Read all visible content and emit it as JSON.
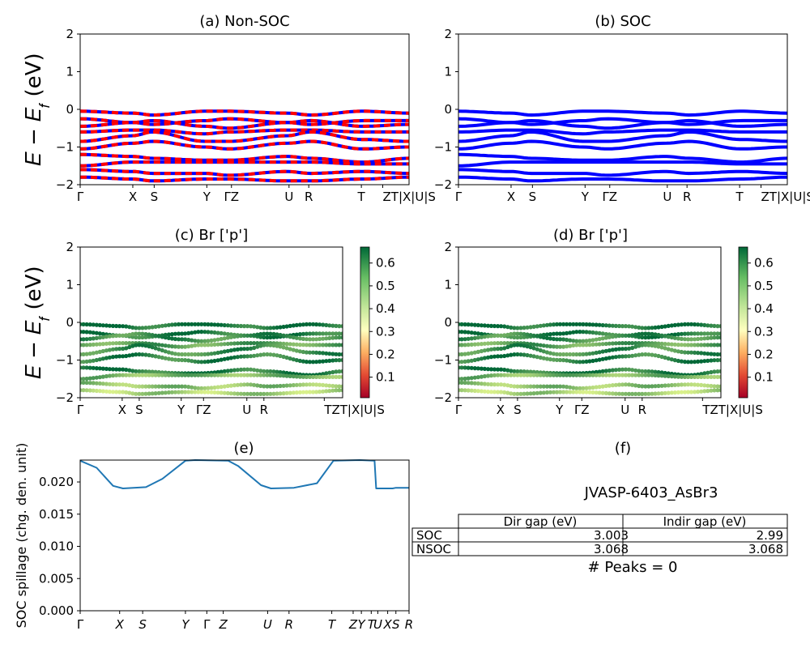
{
  "chart_data": [
    {
      "id": "a",
      "type": "line",
      "title": "(a) Non-SOC",
      "ylabel": "E − E_f (eV)",
      "ylim": [
        -2,
        2
      ],
      "yticks": [
        "2",
        "1",
        "0",
        "−1",
        "−2"
      ],
      "xticks": [
        "Γ",
        "X",
        "S",
        "Y",
        "ΓZ",
        "U",
        "R",
        "T",
        "ZT|X|U|S"
      ],
      "style": "red-blue-dashed",
      "bands_at_kpoints": {
        "k": [
          0,
          0.16,
          0.22,
          0.38,
          0.45,
          0.63,
          0.7,
          0.86,
          1.0
        ],
        "bands": [
          [
            -0.05,
            -0.1,
            -0.15,
            -0.05,
            -0.05,
            -0.1,
            -0.15,
            -0.05,
            -0.1
          ],
          [
            -0.25,
            -0.35,
            -0.4,
            -0.3,
            -0.25,
            -0.35,
            -0.4,
            -0.3,
            -0.3
          ],
          [
            -0.45,
            -0.35,
            -0.3,
            -0.45,
            -0.5,
            -0.35,
            -0.3,
            -0.45,
            -0.4
          ],
          [
            -0.6,
            -0.55,
            -0.55,
            -0.65,
            -0.6,
            -0.55,
            -0.55,
            -0.6,
            -0.6
          ],
          [
            -0.85,
            -0.7,
            -0.6,
            -0.85,
            -0.85,
            -0.7,
            -0.6,
            -0.8,
            -0.85
          ],
          [
            -1.05,
            -0.9,
            -0.85,
            -1.0,
            -1.05,
            -0.9,
            -0.85,
            -1.05,
            -1.0
          ],
          [
            -1.2,
            -1.25,
            -1.3,
            -1.35,
            -1.35,
            -1.25,
            -1.3,
            -1.4,
            -1.3
          ],
          [
            -1.5,
            -1.4,
            -1.4,
            -1.4,
            -1.4,
            -1.4,
            -1.4,
            -1.45,
            -1.45
          ],
          [
            -1.6,
            -1.65,
            -1.7,
            -1.7,
            -1.75,
            -1.65,
            -1.7,
            -1.65,
            -1.7
          ],
          [
            -1.8,
            -1.85,
            -1.9,
            -1.85,
            -1.85,
            -1.9,
            -1.9,
            -1.85,
            -1.8
          ]
        ]
      }
    },
    {
      "id": "b",
      "type": "line",
      "title": "(b) SOC",
      "ylim": [
        -2,
        2
      ],
      "yticks": [
        "2",
        "1",
        "0",
        "−1",
        "−2"
      ],
      "xticks": [
        "Γ",
        "X",
        "S",
        "Y",
        "ΓZ",
        "U",
        "R",
        "T",
        "ZT|X|U|S"
      ],
      "style": "blue-solid",
      "bands_at_kpoints": {
        "k": [
          0,
          0.16,
          0.22,
          0.38,
          0.45,
          0.63,
          0.7,
          0.86,
          1.0
        ],
        "bands": [
          [
            -0.05,
            -0.1,
            -0.15,
            -0.05,
            -0.05,
            -0.1,
            -0.15,
            -0.05,
            -0.1
          ],
          [
            -0.25,
            -0.35,
            -0.4,
            -0.3,
            -0.25,
            -0.35,
            -0.4,
            -0.3,
            -0.3
          ],
          [
            -0.45,
            -0.35,
            -0.3,
            -0.45,
            -0.5,
            -0.35,
            -0.3,
            -0.45,
            -0.4
          ],
          [
            -0.6,
            -0.55,
            -0.55,
            -0.65,
            -0.6,
            -0.55,
            -0.55,
            -0.6,
            -0.6
          ],
          [
            -0.85,
            -0.7,
            -0.6,
            -0.85,
            -0.85,
            -0.7,
            -0.6,
            -0.8,
            -0.85
          ],
          [
            -1.05,
            -0.9,
            -0.85,
            -1.0,
            -1.05,
            -0.9,
            -0.85,
            -1.05,
            -1.0
          ],
          [
            -1.2,
            -1.25,
            -1.3,
            -1.35,
            -1.35,
            -1.25,
            -1.3,
            -1.4,
            -1.3
          ],
          [
            -1.5,
            -1.4,
            -1.4,
            -1.4,
            -1.4,
            -1.4,
            -1.4,
            -1.45,
            -1.45
          ],
          [
            -1.6,
            -1.65,
            -1.7,
            -1.7,
            -1.75,
            -1.65,
            -1.7,
            -1.65,
            -1.7
          ],
          [
            -1.8,
            -1.85,
            -1.9,
            -1.85,
            -1.85,
            -1.9,
            -1.9,
            -1.85,
            -1.8
          ]
        ]
      }
    },
    {
      "id": "c",
      "type": "scatter",
      "title": "(c)  Br ['p']",
      "ylabel": "E − E_f (eV)",
      "ylim": [
        -2,
        2
      ],
      "yticks": [
        "2",
        "1",
        "0",
        "−1",
        "−2"
      ],
      "xticks": [
        "Γ",
        "X",
        "S",
        "Y",
        "ΓZ",
        "U",
        "R",
        "TZT|X|U|S"
      ],
      "colorbar": {
        "colormap": "RdYlGn",
        "ticks": [
          "0.6",
          "0.5",
          "0.4",
          "0.3",
          "0.2",
          "0.1"
        ],
        "range": [
          0.01,
          0.67
        ]
      },
      "bands_at_kpoints": {
        "k": [
          0,
          0.16,
          0.22,
          0.39,
          0.46,
          0.64,
          0.71,
          0.88,
          1.0
        ],
        "bands": [
          [
            -0.05,
            -0.1,
            -0.15,
            -0.05,
            -0.05,
            -0.1,
            -0.15,
            -0.05,
            -0.1
          ],
          [
            -0.25,
            -0.35,
            -0.4,
            -0.3,
            -0.25,
            -0.35,
            -0.4,
            -0.3,
            -0.3
          ],
          [
            -0.45,
            -0.35,
            -0.3,
            -0.45,
            -0.5,
            -0.35,
            -0.3,
            -0.45,
            -0.4
          ],
          [
            -0.6,
            -0.55,
            -0.55,
            -0.65,
            -0.6,
            -0.55,
            -0.55,
            -0.6,
            -0.6
          ],
          [
            -0.85,
            -0.7,
            -0.6,
            -0.85,
            -0.85,
            -0.7,
            -0.6,
            -0.8,
            -0.85
          ],
          [
            -1.05,
            -0.9,
            -0.85,
            -1.0,
            -1.05,
            -0.9,
            -0.85,
            -1.05,
            -1.0
          ],
          [
            -1.2,
            -1.25,
            -1.3,
            -1.35,
            -1.35,
            -1.25,
            -1.3,
            -1.4,
            -1.3
          ],
          [
            -1.5,
            -1.4,
            -1.4,
            -1.4,
            -1.4,
            -1.4,
            -1.4,
            -1.45,
            -1.45
          ],
          [
            -1.6,
            -1.65,
            -1.7,
            -1.7,
            -1.75,
            -1.65,
            -1.7,
            -1.65,
            -1.7
          ],
          [
            -1.8,
            -1.85,
            -1.9,
            -1.85,
            -1.85,
            -1.9,
            -1.9,
            -1.85,
            -1.8
          ]
        ],
        "weights": [
          0.62,
          0.6,
          0.55,
          0.5,
          0.55,
          0.58,
          0.6,
          0.45,
          0.42,
          0.38
        ]
      }
    },
    {
      "id": "d",
      "type": "scatter",
      "title": "(d) Br ['p']",
      "ylim": [
        -2,
        2
      ],
      "yticks": [
        "2",
        "1",
        "0",
        "−1",
        "−2"
      ],
      "xticks": [
        "Γ",
        "X",
        "S",
        "Y",
        "ΓZ",
        "U",
        "R",
        "TZT|X|U|S"
      ],
      "colorbar": {
        "colormap": "RdYlGn",
        "ticks": [
          "0.6",
          "0.5",
          "0.4",
          "0.3",
          "0.2",
          "0.1"
        ],
        "range": [
          0.01,
          0.67
        ]
      },
      "bands_at_kpoints": {
        "k": [
          0,
          0.16,
          0.22,
          0.39,
          0.46,
          0.64,
          0.71,
          0.88,
          1.0
        ],
        "bands": [
          [
            -0.05,
            -0.1,
            -0.15,
            -0.05,
            -0.05,
            -0.1,
            -0.15,
            -0.05,
            -0.1
          ],
          [
            -0.25,
            -0.35,
            -0.4,
            -0.3,
            -0.25,
            -0.35,
            -0.4,
            -0.3,
            -0.3
          ],
          [
            -0.45,
            -0.35,
            -0.3,
            -0.45,
            -0.5,
            -0.35,
            -0.3,
            -0.45,
            -0.4
          ],
          [
            -0.6,
            -0.55,
            -0.55,
            -0.65,
            -0.6,
            -0.55,
            -0.55,
            -0.6,
            -0.6
          ],
          [
            -0.85,
            -0.7,
            -0.6,
            -0.85,
            -0.85,
            -0.7,
            -0.6,
            -0.8,
            -0.85
          ],
          [
            -1.05,
            -0.9,
            -0.85,
            -1.0,
            -1.05,
            -0.9,
            -0.85,
            -1.05,
            -1.0
          ],
          [
            -1.2,
            -1.25,
            -1.3,
            -1.35,
            -1.35,
            -1.25,
            -1.3,
            -1.4,
            -1.3
          ],
          [
            -1.5,
            -1.4,
            -1.4,
            -1.4,
            -1.4,
            -1.4,
            -1.4,
            -1.45,
            -1.45
          ],
          [
            -1.6,
            -1.65,
            -1.7,
            -1.7,
            -1.75,
            -1.65,
            -1.7,
            -1.65,
            -1.7
          ],
          [
            -1.8,
            -1.85,
            -1.9,
            -1.85,
            -1.85,
            -1.9,
            -1.9,
            -1.85,
            -1.8
          ]
        ],
        "weights": [
          0.62,
          0.6,
          0.55,
          0.5,
          0.55,
          0.58,
          0.6,
          0.45,
          0.42,
          0.38
        ]
      }
    },
    {
      "id": "e",
      "type": "line",
      "title": "(e)",
      "ylabel": "SOC spillage (chg. den. unit)",
      "ylim": [
        0,
        0.0234
      ],
      "yticks": [
        "0.020",
        "0.015",
        "0.010",
        "0.005",
        "0.000"
      ],
      "xticks": [
        "Γ",
        "X",
        "S",
        "Y",
        "Γ",
        "Z",
        "U",
        "R",
        "T",
        "Z",
        "Y",
        "T",
        "U",
        "X",
        "S",
        "R"
      ],
      "color": "#1f77b4",
      "x": [
        0,
        0.05,
        0.1,
        0.13,
        0.2,
        0.25,
        0.32,
        0.35,
        0.45,
        0.48,
        0.55,
        0.58,
        0.65,
        0.72,
        0.77,
        0.85,
        0.895,
        0.9,
        0.95,
        0.96,
        1.0
      ],
      "y": [
        0.0233,
        0.0222,
        0.0194,
        0.019,
        0.0192,
        0.0205,
        0.0233,
        0.0234,
        0.0233,
        0.0225,
        0.0195,
        0.019,
        0.0191,
        0.0198,
        0.0233,
        0.0234,
        0.0233,
        0.019,
        0.019,
        0.0191,
        0.0191
      ]
    }
  ],
  "table_panel": {
    "title": "(f)",
    "material": "JVASP-6403_AsBr3",
    "headers": [
      "",
      "Dir gap (eV)",
      "Indir gap (eV)"
    ],
    "rows": [
      {
        "label": "SOC",
        "dir": "3.003",
        "indir": "2.99"
      },
      {
        "label": "NSOC",
        "dir": "3.068",
        "indir": "3.068"
      }
    ],
    "peaks": "# Peaks = 0"
  },
  "colors": {
    "nonsoc_a": "#ff0000",
    "nonsoc_b": "#0000ff",
    "soc": "#0000ff",
    "spillage": "#1f77b4"
  }
}
